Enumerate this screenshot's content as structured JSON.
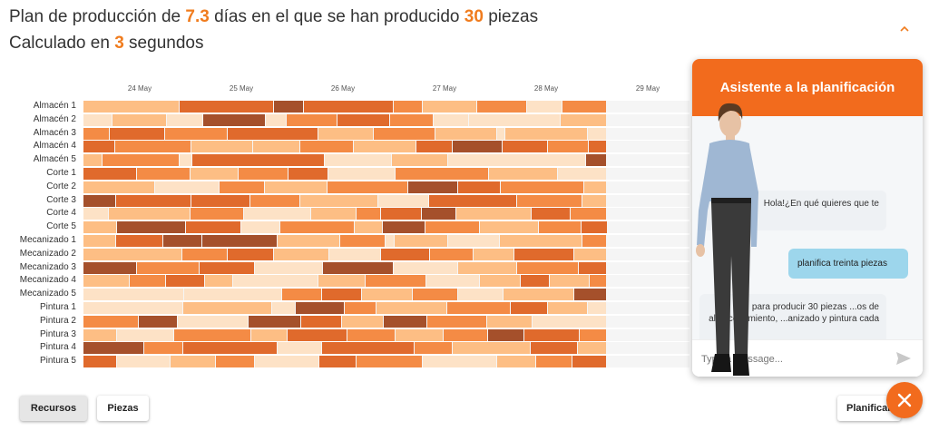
{
  "header": {
    "line1_prefix": "Plan de producción de ",
    "line1_days": "7.3",
    "line1_middle": " días en el que se han producido ",
    "line1_pieces": "30",
    "line1_suffix": " piezas",
    "line2_prefix": "Calculado en ",
    "line2_seconds": "3",
    "line2_suffix": " segundos"
  },
  "gantt": {
    "dates": [
      "24 May",
      "25 May",
      "26 May",
      "27 May",
      "28 May",
      "29 May"
    ],
    "resources": [
      {
        "name": "Almacén 1",
        "tasks": [
          [
            0,
            9.2,
            1
          ],
          [
            9.2,
            18.2,
            3
          ],
          [
            18.2,
            21.0,
            4
          ],
          [
            21.0,
            29.6,
            3
          ],
          [
            29.6,
            32.4,
            2
          ],
          [
            32.4,
            37.6,
            1
          ],
          [
            37.6,
            42.3,
            2
          ],
          [
            42.3,
            45.7,
            0
          ],
          [
            45.7,
            50.0,
            2
          ]
        ]
      },
      {
        "name": "Almacén 2",
        "tasks": [
          [
            0,
            2.8,
            0
          ],
          [
            2.8,
            8.0,
            1
          ],
          [
            8.0,
            11.4,
            0
          ],
          [
            11.4,
            17.4,
            4
          ],
          [
            17.4,
            19.4,
            0
          ],
          [
            19.4,
            24.2,
            2
          ],
          [
            24.2,
            29.3,
            3
          ],
          [
            29.3,
            33.4,
            2
          ],
          [
            33.4,
            36.8,
            0
          ],
          [
            36.8,
            45.5,
            0
          ],
          [
            45.5,
            50.0,
            1
          ]
        ]
      },
      {
        "name": "Almacén 3",
        "tasks": [
          [
            0,
            2.5,
            2
          ],
          [
            2.5,
            7.8,
            3
          ],
          [
            7.8,
            13.8,
            2
          ],
          [
            13.8,
            22.4,
            3
          ],
          [
            22.4,
            27.7,
            1
          ],
          [
            27.7,
            33.6,
            2
          ],
          [
            33.6,
            39.5,
            1
          ],
          [
            39.5,
            40.3,
            0
          ],
          [
            40.3,
            48.1,
            1
          ],
          [
            48.1,
            50.0,
            0
          ]
        ]
      },
      {
        "name": "Almacén 4",
        "tasks": [
          [
            0,
            3.0,
            3
          ],
          [
            3.0,
            10.3,
            2
          ],
          [
            10.3,
            16.2,
            1
          ],
          [
            16.2,
            20.7,
            1
          ],
          [
            20.7,
            25.8,
            2
          ],
          [
            25.8,
            31.8,
            1
          ],
          [
            31.8,
            35.2,
            3
          ],
          [
            35.2,
            40.0,
            4
          ],
          [
            40.0,
            44.3,
            3
          ],
          [
            44.3,
            48.2,
            2
          ],
          [
            48.2,
            50.0,
            3
          ]
        ]
      },
      {
        "name": "Almacén 5",
        "tasks": [
          [
            0,
            1.8,
            1
          ],
          [
            1.8,
            9.2,
            2
          ],
          [
            9.2,
            10.4,
            0
          ],
          [
            10.4,
            23.0,
            3
          ],
          [
            23.0,
            29.4,
            0
          ],
          [
            29.4,
            34.8,
            1
          ],
          [
            34.8,
            48.0,
            0
          ],
          [
            48.0,
            50.0,
            4
          ]
        ]
      },
      {
        "name": "Corte 1",
        "tasks": [
          [
            0,
            5.1,
            3
          ],
          [
            5.1,
            10.2,
            2
          ],
          [
            10.2,
            14.8,
            1
          ],
          [
            14.8,
            19.6,
            2
          ],
          [
            19.6,
            23.4,
            3
          ],
          [
            23.4,
            29.8,
            0
          ],
          [
            29.8,
            38.7,
            2
          ],
          [
            38.7,
            45.3,
            1
          ],
          [
            45.3,
            50.0,
            0
          ]
        ]
      },
      {
        "name": "Corte 2",
        "tasks": [
          [
            0,
            6.8,
            1
          ],
          [
            6.8,
            13.0,
            0
          ],
          [
            13.0,
            17.3,
            2
          ],
          [
            17.3,
            23.3,
            1
          ],
          [
            23.3,
            31.0,
            2
          ],
          [
            31.0,
            35.8,
            4
          ],
          [
            35.8,
            39.8,
            3
          ],
          [
            39.8,
            47.8,
            2
          ],
          [
            47.8,
            50.0,
            1
          ]
        ]
      },
      {
        "name": "Corte 3",
        "tasks": [
          [
            0,
            3.1,
            4
          ],
          [
            3.1,
            10.3,
            3
          ],
          [
            10.3,
            15.9,
            3
          ],
          [
            15.9,
            20.7,
            2
          ],
          [
            20.7,
            28.1,
            1
          ],
          [
            28.1,
            33.0,
            0
          ],
          [
            33.0,
            41.4,
            3
          ],
          [
            41.4,
            47.6,
            2
          ],
          [
            47.6,
            50.0,
            1
          ]
        ]
      },
      {
        "name": "Corte 4",
        "tasks": [
          [
            0,
            2.4,
            0
          ],
          [
            2.4,
            10.2,
            1
          ],
          [
            10.2,
            15.3,
            2
          ],
          [
            15.3,
            21.7,
            0
          ],
          [
            21.7,
            26.1,
            1
          ],
          [
            26.1,
            28.4,
            2
          ],
          [
            28.4,
            32.3,
            3
          ],
          [
            32.3,
            35.6,
            4
          ],
          [
            35.6,
            42.8,
            1
          ],
          [
            42.8,
            46.5,
            3
          ],
          [
            46.5,
            50.0,
            2
          ]
        ]
      },
      {
        "name": "Corte 5",
        "tasks": [
          [
            0,
            3.2,
            1
          ],
          [
            3.2,
            9.8,
            4
          ],
          [
            9.8,
            15.1,
            3
          ],
          [
            15.1,
            18.8,
            0
          ],
          [
            18.8,
            25.9,
            2
          ],
          [
            25.9,
            28.6,
            1
          ],
          [
            28.6,
            32.6,
            4
          ],
          [
            32.6,
            37.8,
            2
          ],
          [
            37.8,
            43.5,
            1
          ],
          [
            43.5,
            47.5,
            2
          ],
          [
            47.5,
            50.0,
            3
          ]
        ]
      },
      {
        "name": "Mecanizado 1",
        "tasks": [
          [
            0,
            3.1,
            1
          ],
          [
            3.1,
            7.6,
            3
          ],
          [
            7.6,
            11.3,
            4
          ],
          [
            11.3,
            18.5,
            4
          ],
          [
            18.5,
            24.5,
            1
          ],
          [
            24.5,
            28.8,
            2
          ],
          [
            28.8,
            29.7,
            0
          ],
          [
            29.7,
            34.8,
            1
          ],
          [
            34.8,
            39.7,
            0
          ],
          [
            39.7,
            47.6,
            1
          ],
          [
            47.6,
            50.0,
            2
          ]
        ]
      },
      {
        "name": "Mecanizado 2",
        "tasks": [
          [
            0,
            9.4,
            1
          ],
          [
            9.4,
            13.8,
            2
          ],
          [
            13.8,
            18.2,
            3
          ],
          [
            18.2,
            23.5,
            1
          ],
          [
            23.5,
            28.4,
            0
          ],
          [
            28.4,
            33.1,
            3
          ],
          [
            33.1,
            37.2,
            2
          ],
          [
            37.2,
            41.1,
            1
          ],
          [
            41.1,
            46.8,
            3
          ],
          [
            46.8,
            50.0,
            1
          ]
        ]
      },
      {
        "name": "Mecanizado 3",
        "tasks": [
          [
            0,
            5.1,
            4
          ],
          [
            5.1,
            11.1,
            2
          ],
          [
            11.1,
            16.4,
            3
          ],
          [
            16.4,
            22.9,
            0
          ],
          [
            22.9,
            29.6,
            4
          ],
          [
            29.6,
            35.8,
            0
          ],
          [
            35.8,
            41.4,
            1
          ],
          [
            41.4,
            47.3,
            2
          ],
          [
            47.3,
            50.0,
            3
          ]
        ]
      },
      {
        "name": "Mecanizado 4",
        "tasks": [
          [
            0,
            4.4,
            1
          ],
          [
            4.4,
            7.9,
            2
          ],
          [
            7.9,
            11.6,
            3
          ],
          [
            11.6,
            14.3,
            1
          ],
          [
            14.3,
            22.4,
            0
          ],
          [
            22.4,
            26.9,
            1
          ],
          [
            26.9,
            32.7,
            2
          ],
          [
            32.7,
            37.8,
            0
          ],
          [
            37.8,
            41.7,
            1
          ],
          [
            41.7,
            44.5,
            3
          ],
          [
            44.5,
            48.3,
            1
          ],
          [
            48.3,
            50.0,
            2
          ]
        ]
      },
      {
        "name": "Mecanizado 5",
        "tasks": [
          [
            0,
            9.6,
            0
          ],
          [
            9.6,
            19.0,
            0
          ],
          [
            19.0,
            22.8,
            2
          ],
          [
            22.8,
            26.6,
            3
          ],
          [
            26.6,
            31.4,
            1
          ],
          [
            31.4,
            35.8,
            2
          ],
          [
            35.8,
            40.1,
            0
          ],
          [
            40.1,
            46.8,
            1
          ],
          [
            46.8,
            50.0,
            4
          ]
        ]
      },
      {
        "name": "Pintura 1",
        "tasks": [
          [
            0,
            9.5,
            0
          ],
          [
            9.5,
            18.0,
            1
          ],
          [
            18.0,
            20.3,
            0
          ],
          [
            20.3,
            24.9,
            4
          ],
          [
            24.9,
            28.0,
            2
          ],
          [
            28.0,
            34.7,
            1
          ],
          [
            34.7,
            40.8,
            2
          ],
          [
            40.8,
            44.3,
            3
          ],
          [
            44.3,
            48.1,
            1
          ],
          [
            48.1,
            50.0,
            0
          ]
        ]
      },
      {
        "name": "Pintura 2",
        "tasks": [
          [
            0,
            5.3,
            2
          ],
          [
            5.3,
            9.0,
            4
          ],
          [
            9.0,
            15.8,
            0
          ],
          [
            15.8,
            20.8,
            4
          ],
          [
            20.8,
            24.7,
            3
          ],
          [
            24.7,
            28.7,
            1
          ],
          [
            28.7,
            32.8,
            4
          ],
          [
            32.8,
            38.5,
            2
          ],
          [
            38.5,
            42.9,
            1
          ],
          [
            42.9,
            50.0,
            0
          ]
        ]
      },
      {
        "name": "Pintura 3",
        "tasks": [
          [
            0,
            3.2,
            1
          ],
          [
            3.2,
            8.7,
            0
          ],
          [
            8.7,
            16.0,
            2
          ],
          [
            16.0,
            19.5,
            1
          ],
          [
            19.5,
            25.2,
            3
          ],
          [
            25.2,
            29.8,
            2
          ],
          [
            29.8,
            34.4,
            1
          ],
          [
            34.4,
            38.6,
            2
          ],
          [
            38.6,
            42.1,
            4
          ],
          [
            42.1,
            47.4,
            3
          ],
          [
            47.4,
            50.0,
            2
          ]
        ]
      },
      {
        "name": "Pintura 4",
        "tasks": [
          [
            0,
            5.8,
            4
          ],
          [
            5.8,
            9.5,
            2
          ],
          [
            9.5,
            18.5,
            3
          ],
          [
            18.5,
            22.8,
            0
          ],
          [
            22.8,
            31.6,
            3
          ],
          [
            31.6,
            35.2,
            2
          ],
          [
            35.2,
            42.7,
            1
          ],
          [
            42.7,
            47.2,
            3
          ],
          [
            47.2,
            50.0,
            1
          ]
        ]
      },
      {
        "name": "Pintura 5",
        "tasks": [
          [
            0,
            3.2,
            3
          ],
          [
            3.2,
            8.3,
            0
          ],
          [
            8.3,
            12.6,
            1
          ],
          [
            12.6,
            16.4,
            2
          ],
          [
            16.4,
            22.5,
            0
          ],
          [
            22.5,
            26.1,
            3
          ],
          [
            26.1,
            32.4,
            2
          ],
          [
            32.4,
            39.5,
            0
          ],
          [
            39.5,
            43.2,
            1
          ],
          [
            43.2,
            46.7,
            2
          ],
          [
            46.7,
            50.0,
            3
          ]
        ]
      }
    ],
    "palette": [
      "#fde2c6",
      "#fdbe84",
      "#f48b45",
      "#e06a2c",
      "#a5502b"
    ]
  },
  "buttons": {
    "recursos": "Recursos",
    "piezas": "Piezas",
    "planificar": "Planificar"
  },
  "chat": {
    "title": "Asistente a la planificación",
    "messages": [
      {
        "from": "bot",
        "text": "Hola!¿En qué quieres que te"
      },
      {
        "from": "user",
        "text": "planifica treinta piezas"
      },
      {
        "from": "bot",
        "text": "para producir 30 piezas ...os de almacenamiento, ...anizado y pintura cada"
      }
    ],
    "input_placeholder": "Type a message..."
  },
  "colors": {
    "accent": "#f26b1d",
    "headline_number": "#f07c1e",
    "user_bubble": "#9dd6ec"
  },
  "icons": {
    "collapse": "chevron-up-icon",
    "send": "send-icon",
    "close": "close-icon"
  }
}
